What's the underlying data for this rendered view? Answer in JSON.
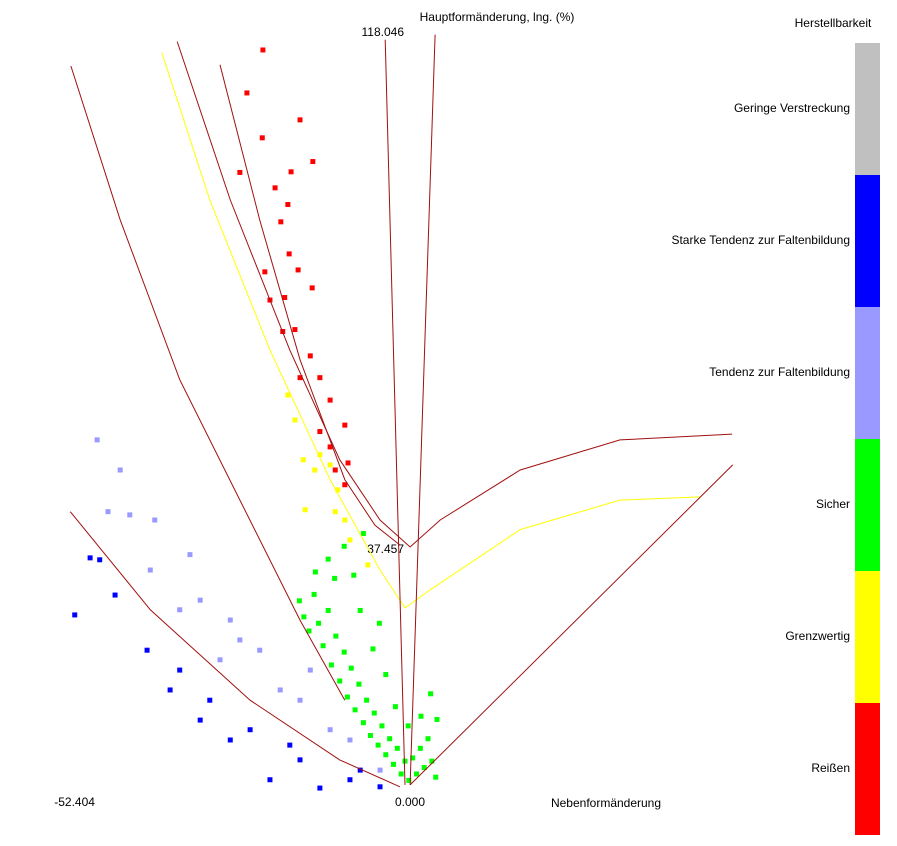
{
  "chart_data": {
    "type": "scatter",
    "xlabel": "Nebenformänderung",
    "ylabel": "Hauptformänderung, lng. (%)",
    "xlim": [
      -52.404,
      52.404
    ],
    "ylim": [
      0,
      118.046
    ],
    "xticks": [
      -52.404,
      {
        "value": 0,
        "label": "0.000"
      }
    ],
    "yticks": [
      37.457,
      118.046
    ],
    "grid": false,
    "legend_title": "Herstellbarkeit",
    "legend_position": "right",
    "series": [
      {
        "name": "Geringe Verstreckung",
        "color": "#c0c0c0",
        "x": [],
        "values": []
      },
      {
        "name": "Starke Tendenz zur Faltenbildung",
        "color": "#0000ff",
        "x": [
          -49.2,
          -47.7,
          -51.6,
          -45.3,
          -40.3,
          -35.2,
          -30.5,
          -24.2,
          -16.4,
          -8.6,
          -3.9,
          -21.1,
          -27.3,
          -13.3,
          -32.0,
          -36.7,
          -7.0,
          -18.0
        ],
        "values": [
          36.2,
          35.9,
          27.3,
          30.4,
          21.8,
          18.7,
          14.0,
          9.4,
          4.7,
          1.6,
          0.5,
          1.6,
          7.8,
          0.3,
          10.9,
          15.6,
          3.1,
          7.0
        ]
      },
      {
        "name": "Tendenz zur Faltenbildung",
        "color": "#9999ff",
        "x": [
          -48.1,
          -44.5,
          -46.4,
          -43.0,
          -39.1,
          -39.8,
          -33.6,
          -32.0,
          -27.3,
          -22.7,
          -16.4,
          -8.6,
          -3.9,
          -28.9,
          -19.5,
          -11.7,
          -25.8,
          -35.2,
          -14.8
        ],
        "values": [
          54.6,
          49.9,
          43.4,
          42.9,
          42.1,
          34.3,
          36.7,
          29.6,
          26.5,
          21.8,
          14.0,
          7.8,
          3.1,
          20.3,
          15.6,
          9.4,
          23.4,
          28.1,
          18.7
        ]
      },
      {
        "name": "Sicher",
        "color": "#00ff00",
        "x": [
          -16.5,
          -15.8,
          -15.0,
          -14.2,
          -13.5,
          -12.8,
          -12.0,
          -11.5,
          -10.8,
          -10.2,
          -9.5,
          -9.0,
          -8.4,
          -7.8,
          -7.2,
          -6.5,
          -6.0,
          -5.4,
          -4.8,
          -4.2,
          -3.6,
          -3.0,
          -2.4,
          -1.8,
          -1.2,
          -0.6,
          0,
          0.6,
          1.2,
          1.8,
          2.4,
          3.0,
          3.6,
          4.2,
          4.8,
          4.0,
          -12.0,
          -11.0,
          -9.5,
          -7.0,
          -5.0,
          -3.0,
          -1.5,
          0.5,
          2.5,
          -8.0,
          -14.0,
          -6.5,
          -4.0,
          5.0
        ],
        "values": [
          29.5,
          27.0,
          24.8,
          30.5,
          26.0,
          22.5,
          28.0,
          19.5,
          24.0,
          17.0,
          21.5,
          14.5,
          19.0,
          12.5,
          16.5,
          10.5,
          14.0,
          8.5,
          12.0,
          7.0,
          10.0,
          5.5,
          8.0,
          4.0,
          6.5,
          2.5,
          4.5,
          1.5,
          5.0,
          2.5,
          6.5,
          3.5,
          8.0,
          4.5,
          2.0,
          15.0,
          36.0,
          33.0,
          38.0,
          28.0,
          22.0,
          18.0,
          13.0,
          10.0,
          11.5,
          33.5,
          34.0,
          40.0,
          26.0,
          11.0
        ]
      },
      {
        "name": "Grenzwertig",
        "color": "#ffff00",
        "x": [
          -18.3,
          -17.2,
          -15.9,
          -14.1,
          -11.7,
          -15.6,
          -10.9,
          -9.4,
          -8.6,
          -5.8,
          -13.3,
          -10.5
        ],
        "values": [
          61.6,
          57.7,
          51.5,
          49.9,
          50.7,
          43.7,
          43.4,
          42.1,
          39.0,
          35.1,
          52.3,
          46.8
        ]
      },
      {
        "name": "Reißen",
        "color": "#ff0000",
        "x": [
          -22.2,
          -24.7,
          -16.4,
          -22.3,
          -14.4,
          -25.8,
          -17.8,
          -20.3,
          -18.3,
          -19.4,
          -18.1,
          -16.7,
          -21.9,
          -14.5,
          -21.1,
          -18.8,
          -17.2,
          -19.1,
          -14.8,
          -13.3,
          -16.4,
          -11.7,
          -9.4,
          -13.3,
          -11.7,
          -8.9,
          -10.9,
          -9.4
        ],
        "values": [
          115.4,
          108.7,
          104.5,
          101.7,
          98.0,
          96.3,
          96.4,
          93.9,
          91.3,
          88.6,
          83.6,
          81.1,
          80.8,
          78.3,
          76.4,
          76.8,
          71.8,
          71.5,
          67.7,
          64.3,
          64.3,
          60.8,
          56.9,
          55.9,
          53.5,
          51.0,
          49.9,
          47.6
        ]
      }
    ],
    "lines": [
      {
        "color": "#a01010",
        "x": [
          -35.6,
          -27.3,
          -18.0,
          -10.2,
          -3.9,
          0.8,
          5.5,
          18.0,
          33.6,
          51.1
        ],
        "values": [
          116.7,
          92.0,
          68.6,
          51.5,
          42.1,
          37.9,
          42.1,
          49.9,
          54.6,
          55.5
        ]
      },
      {
        "color": "#a01010",
        "x": [
          -28.9,
          -22.7,
          -16.4,
          -9.4,
          -4.7,
          -0.8
        ],
        "values": [
          113.1,
          88.9,
          67.1,
          48.4,
          41.3,
          38.2
        ]
      },
      {
        "color": "#ffff00",
        "x": [
          -38.0,
          -30.5,
          -21.1,
          -11.7,
          -3.9,
          0,
          3.9,
          18.0,
          33.6,
          46.1
        ],
        "values": [
          115.0,
          92.0,
          68.6,
          48.4,
          34.3,
          28.4,
          31.2,
          40.6,
          45.2,
          45.7
        ]
      },
      {
        "color": "#a01010",
        "x": [
          -52.2,
          -44.5,
          -35.2,
          -25.8,
          -16.4,
          -9.4
        ],
        "values": [
          112.9,
          88.9,
          64.0,
          45.2,
          26.5,
          14.0
        ]
      },
      {
        "color": "#a01010",
        "x": [
          -52.3,
          -39.8,
          -24.2,
          -10.2,
          -0.8
        ],
        "values": [
          43.4,
          28.1,
          14.0,
          4.7,
          0.5
        ]
      },
      {
        "color": "#a01010",
        "x": [
          0.8,
          51.2
        ],
        "values": [
          0.8,
          50.7
        ]
      },
      {
        "color": "#a01010",
        "x": [
          -3.1,
          0
        ],
        "values": [
          117.0,
          0.8
        ]
      },
      {
        "color": "#a01010",
        "x": [
          4.7,
          0.8
        ],
        "values": [
          117.8,
          0.8
        ]
      }
    ]
  }
}
